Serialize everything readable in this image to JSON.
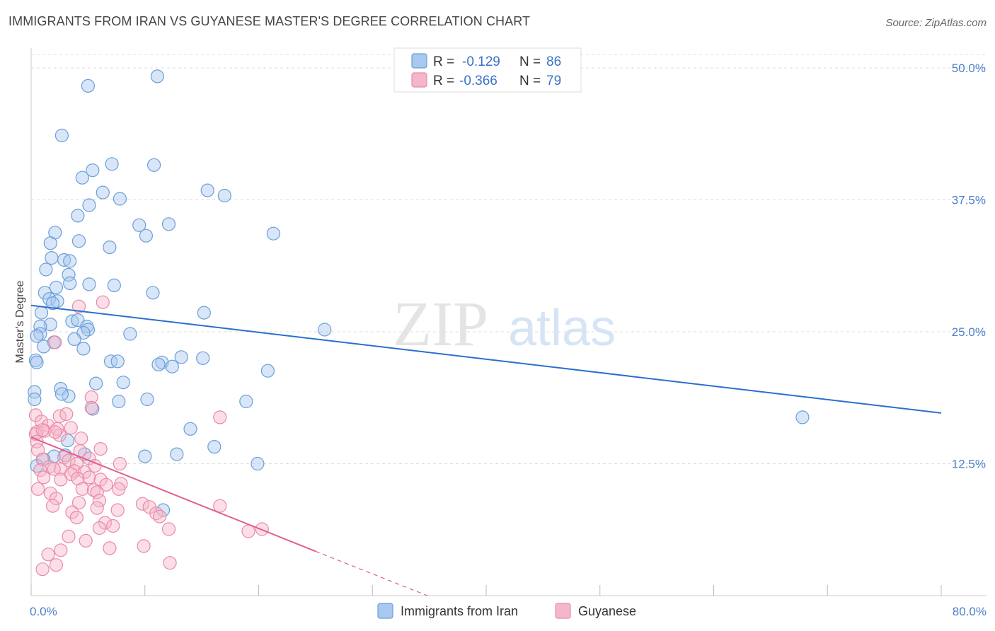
{
  "title": "IMMIGRANTS FROM IRAN VS GUYANESE MASTER'S DEGREE CORRELATION CHART",
  "source": "Source: ZipAtlas.com",
  "watermark": {
    "zip": "ZIP",
    "atlas": "atlas"
  },
  "legend_top": [
    {
      "r_label": "R =",
      "r_value": "-0.129",
      "n_label": "N =",
      "n_value": "86"
    },
    {
      "r_label": "R =",
      "r_value": "-0.366",
      "n_label": "N =",
      "n_value": "79"
    }
  ],
  "colors": {
    "iran_fill": "#a8c8f0",
    "iran_stroke": "#6a9fd8",
    "iran_line": "#2a6fd0",
    "guy_fill": "#f6b6ca",
    "guy_stroke": "#e88aa8",
    "guy_line": "#e0608a",
    "tick_text": "#4a7fc8",
    "grid": "#dddddd"
  },
  "chart_data": {
    "type": "scatter",
    "xlabel": "",
    "ylabel": "Master's Degree",
    "xlim": [
      0,
      80
    ],
    "ylim": [
      0,
      52
    ],
    "x_tick_labels": [
      {
        "value": 0,
        "label": "0.0%"
      },
      {
        "value": 80,
        "label": "80.0%"
      }
    ],
    "y_tick_labels": [
      {
        "value": 12.5,
        "label": "12.5%"
      },
      {
        "value": 25.0,
        "label": "25.0%"
      },
      {
        "value": 37.5,
        "label": "37.5%"
      },
      {
        "value": 50.0,
        "label": "50.0%"
      }
    ],
    "series": [
      {
        "name": "Immigrants from Iran",
        "trend": {
          "x": [
            0,
            80
          ],
          "y": [
            27.5,
            17.3
          ]
        },
        "points": [
          [
            5.0,
            48.3
          ],
          [
            11.1,
            49.2
          ],
          [
            2.7,
            43.6
          ],
          [
            5.4,
            40.3
          ],
          [
            7.1,
            40.9
          ],
          [
            10.8,
            40.8
          ],
          [
            4.5,
            39.6
          ],
          [
            6.3,
            38.2
          ],
          [
            7.8,
            37.6
          ],
          [
            15.5,
            38.4
          ],
          [
            17.0,
            37.9
          ],
          [
            5.1,
            37.0
          ],
          [
            4.1,
            36.0
          ],
          [
            9.5,
            35.1
          ],
          [
            12.1,
            35.2
          ],
          [
            10.1,
            34.1
          ],
          [
            2.1,
            34.4
          ],
          [
            21.3,
            34.3
          ],
          [
            1.7,
            33.4
          ],
          [
            4.2,
            33.6
          ],
          [
            6.9,
            33.0
          ],
          [
            1.8,
            32.0
          ],
          [
            2.9,
            31.8
          ],
          [
            3.4,
            31.7
          ],
          [
            1.3,
            30.9
          ],
          [
            3.3,
            30.4
          ],
          [
            3.4,
            29.6
          ],
          [
            7.3,
            29.4
          ],
          [
            5.1,
            29.5
          ],
          [
            2.2,
            29.2
          ],
          [
            1.2,
            28.7
          ],
          [
            10.7,
            28.7
          ],
          [
            1.6,
            28.1
          ],
          [
            2.3,
            27.9
          ],
          [
            1.9,
            27.7
          ],
          [
            0.9,
            26.8
          ],
          [
            15.2,
            26.8
          ],
          [
            3.6,
            26.0
          ],
          [
            4.1,
            26.1
          ],
          [
            1.7,
            25.7
          ],
          [
            0.8,
            25.5
          ],
          [
            25.8,
            25.2
          ],
          [
            4.9,
            25.5
          ],
          [
            5.0,
            25.2
          ],
          [
            4.6,
            24.9
          ],
          [
            8.7,
            24.8
          ],
          [
            0.8,
            24.8
          ],
          [
            0.5,
            24.6
          ],
          [
            2.0,
            24.0
          ],
          [
            3.8,
            24.3
          ],
          [
            4.6,
            23.4
          ],
          [
            1.1,
            23.6
          ],
          [
            0.4,
            22.3
          ],
          [
            15.1,
            22.5
          ],
          [
            13.2,
            22.6
          ],
          [
            11.5,
            22.1
          ],
          [
            0.5,
            22.1
          ],
          [
            7.0,
            22.2
          ],
          [
            7.6,
            22.2
          ],
          [
            12.4,
            21.7
          ],
          [
            11.2,
            21.9
          ],
          [
            20.8,
            21.3
          ],
          [
            2.6,
            19.6
          ],
          [
            5.7,
            20.1
          ],
          [
            8.1,
            20.2
          ],
          [
            0.3,
            19.3
          ],
          [
            3.3,
            18.9
          ],
          [
            2.7,
            19.1
          ],
          [
            10.2,
            18.6
          ],
          [
            0.3,
            18.6
          ],
          [
            18.9,
            18.4
          ],
          [
            7.7,
            18.4
          ],
          [
            5.4,
            17.7
          ],
          [
            67.8,
            16.9
          ],
          [
            14.0,
            15.8
          ],
          [
            3.2,
            14.7
          ],
          [
            16.1,
            14.1
          ],
          [
            4.7,
            13.4
          ],
          [
            12.8,
            13.4
          ],
          [
            10.0,
            13.2
          ],
          [
            3.0,
            13.3
          ],
          [
            2.0,
            13.2
          ],
          [
            19.9,
            12.5
          ],
          [
            1.1,
            12.9
          ],
          [
            0.5,
            12.3
          ],
          [
            11.6,
            8.1
          ]
        ]
      },
      {
        "name": "Guyanese",
        "trend": {
          "x": [
            0,
            25
          ],
          "y": [
            15.0,
            4.2
          ]
        },
        "trend_dashed": {
          "x": [
            25,
            36
          ],
          "y": [
            4.2,
            -0.5
          ]
        },
        "points": [
          [
            4.2,
            27.4
          ],
          [
            6.3,
            27.8
          ],
          [
            2.1,
            24.0
          ],
          [
            5.3,
            18.8
          ],
          [
            0.4,
            17.1
          ],
          [
            0.9,
            16.5
          ],
          [
            2.5,
            17.0
          ],
          [
            3.1,
            17.2
          ],
          [
            5.3,
            17.8
          ],
          [
            16.6,
            16.9
          ],
          [
            1.5,
            16.1
          ],
          [
            2.3,
            15.8
          ],
          [
            0.5,
            15.5
          ],
          [
            1.2,
            15.6
          ],
          [
            2.5,
            15.2
          ],
          [
            2.1,
            15.5
          ],
          [
            4.4,
            14.9
          ],
          [
            0.4,
            15.3
          ],
          [
            1.0,
            15.7
          ],
          [
            3.5,
            15.9
          ],
          [
            0.5,
            14.6
          ],
          [
            0.6,
            13.8
          ],
          [
            6.1,
            13.9
          ],
          [
            4.3,
            13.7
          ],
          [
            5.1,
            13.0
          ],
          [
            1.0,
            12.9
          ],
          [
            2.9,
            13.1
          ],
          [
            3.3,
            12.8
          ],
          [
            4.0,
            12.5
          ],
          [
            5.6,
            12.3
          ],
          [
            7.8,
            12.5
          ],
          [
            1.6,
            12.2
          ],
          [
            2.6,
            12.0
          ],
          [
            3.8,
            11.8
          ],
          [
            0.8,
            11.9
          ],
          [
            2.0,
            12.0
          ],
          [
            3.5,
            11.5
          ],
          [
            4.7,
            11.7
          ],
          [
            1.1,
            11.2
          ],
          [
            2.6,
            11.0
          ],
          [
            4.1,
            11.1
          ],
          [
            5.1,
            11.2
          ],
          [
            6.1,
            11.0
          ],
          [
            6.6,
            10.5
          ],
          [
            7.9,
            10.6
          ],
          [
            0.6,
            10.1
          ],
          [
            4.5,
            10.1
          ],
          [
            5.5,
            10.0
          ],
          [
            7.7,
            10.1
          ],
          [
            5.8,
            9.8
          ],
          [
            1.7,
            9.7
          ],
          [
            2.2,
            9.2
          ],
          [
            6.0,
            9.0
          ],
          [
            9.8,
            8.7
          ],
          [
            4.2,
            8.8
          ],
          [
            1.9,
            8.5
          ],
          [
            5.8,
            8.3
          ],
          [
            10.4,
            8.4
          ],
          [
            7.6,
            8.1
          ],
          [
            3.6,
            7.9
          ],
          [
            11.0,
            7.8
          ],
          [
            16.6,
            8.5
          ],
          [
            11.3,
            7.5
          ],
          [
            4.0,
            7.4
          ],
          [
            6.5,
            6.9
          ],
          [
            6.0,
            6.4
          ],
          [
            7.2,
            6.6
          ],
          [
            12.1,
            6.3
          ],
          [
            3.3,
            5.6
          ],
          [
            19.1,
            6.1
          ],
          [
            20.3,
            6.3
          ],
          [
            4.8,
            5.2
          ],
          [
            6.9,
            4.5
          ],
          [
            2.6,
            4.3
          ],
          [
            9.9,
            4.7
          ],
          [
            12.2,
            3.1
          ],
          [
            1.5,
            3.9
          ],
          [
            1.0,
            2.5
          ],
          [
            2.2,
            2.9
          ]
        ]
      }
    ],
    "bottom_legend": [
      {
        "label": "Immigrants from Iran"
      },
      {
        "label": "Guyanese"
      }
    ]
  }
}
